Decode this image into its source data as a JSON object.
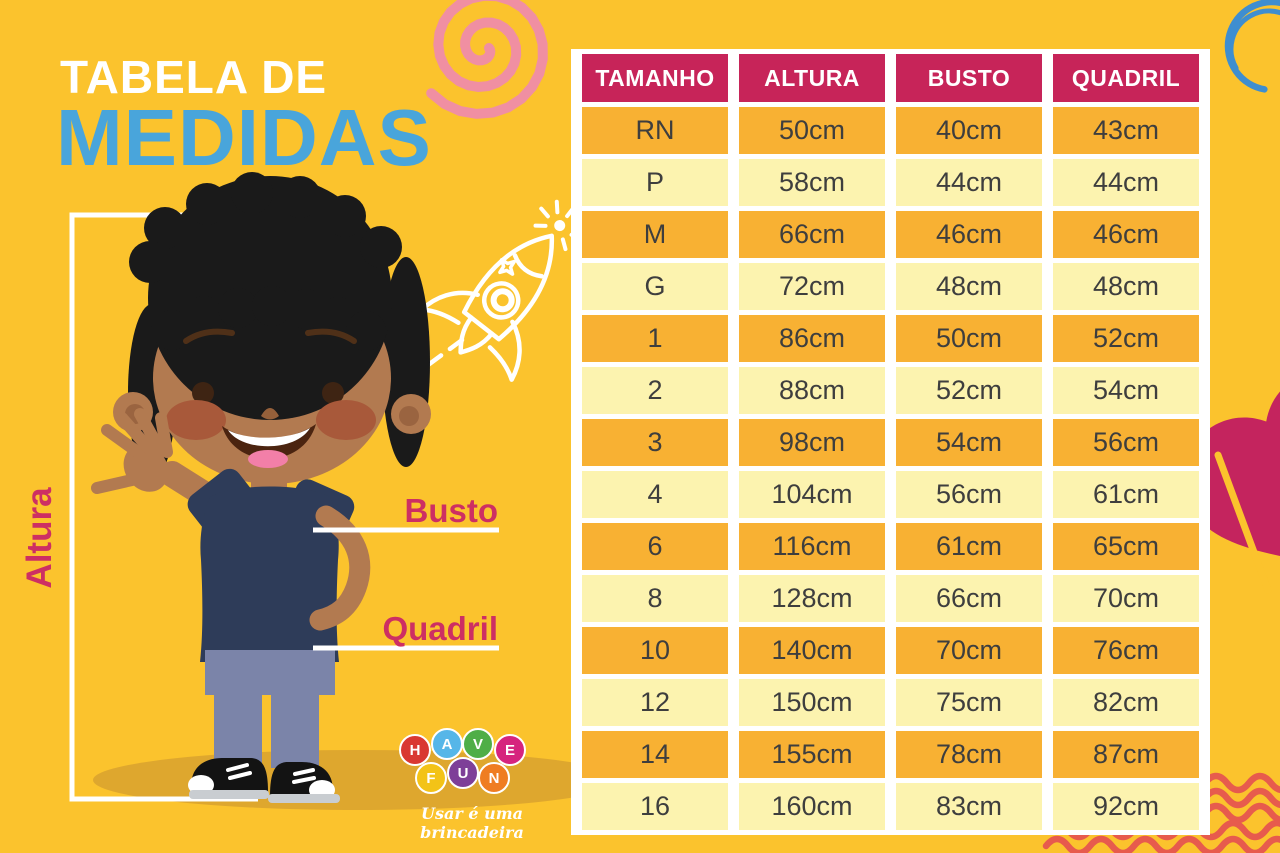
{
  "poster": {
    "title_line1": "TABELA DE",
    "title_line2": "MEDIDAS"
  },
  "measurement_labels": {
    "height": "Altura",
    "bust": "Busto",
    "hip": "Quadril"
  },
  "table": {
    "headers": [
      "TAMANHO",
      "ALTURA",
      "BUSTO",
      "QUADRIL"
    ],
    "rows": [
      {
        "size": "RN",
        "height": "50cm",
        "bust": "40cm",
        "hip": "43cm"
      },
      {
        "size": "P",
        "height": "58cm",
        "bust": "44cm",
        "hip": "44cm"
      },
      {
        "size": "M",
        "height": "66cm",
        "bust": "46cm",
        "hip": "46cm"
      },
      {
        "size": "G",
        "height": "72cm",
        "bust": "48cm",
        "hip": "48cm"
      },
      {
        "size": "1",
        "height": "86cm",
        "bust": "50cm",
        "hip": "52cm"
      },
      {
        "size": "2",
        "height": "88cm",
        "bust": "52cm",
        "hip": "54cm"
      },
      {
        "size": "3",
        "height": "98cm",
        "bust": "54cm",
        "hip": "56cm"
      },
      {
        "size": "4",
        "height": "104cm",
        "bust": "56cm",
        "hip": "61cm"
      },
      {
        "size": "6",
        "height": "116cm",
        "bust": "61cm",
        "hip": "65cm"
      },
      {
        "size": "8",
        "height": "128cm",
        "bust": "66cm",
        "hip": "70cm"
      },
      {
        "size": "10",
        "height": "140cm",
        "bust": "70cm",
        "hip": "76cm"
      },
      {
        "size": "12",
        "height": "150cm",
        "bust": "75cm",
        "hip": "82cm"
      },
      {
        "size": "14",
        "height": "155cm",
        "bust": "78cm",
        "hip": "87cm"
      },
      {
        "size": "16",
        "height": "160cm",
        "bust": "83cm",
        "hip": "92cm"
      }
    ]
  },
  "logo": {
    "letters": [
      {
        "char": "H",
        "color": "#D93832"
      },
      {
        "char": "A",
        "color": "#56B6E8"
      },
      {
        "char": "V",
        "color": "#4FAE47"
      },
      {
        "char": "E",
        "color": "#D6247E"
      },
      {
        "char": "F",
        "color": "#F3C317"
      },
      {
        "char": "U",
        "color": "#7E3F98"
      },
      {
        "char": "N",
        "color": "#EF7D22"
      }
    ],
    "tagline": "Usar é uma brincadeira"
  },
  "colors": {
    "background": "#FBC32D",
    "table_header": "#C72459",
    "row_orange": "#F8B133",
    "row_light": "#FCF3AF",
    "title_blue": "#49A5DB",
    "label_pink": "#CD2F63",
    "wave_red": "#E75B4D",
    "scribble_blue": "#3E8ED0",
    "spiral_pink": "#F08FA2",
    "heart_pink": "#C4245E"
  }
}
